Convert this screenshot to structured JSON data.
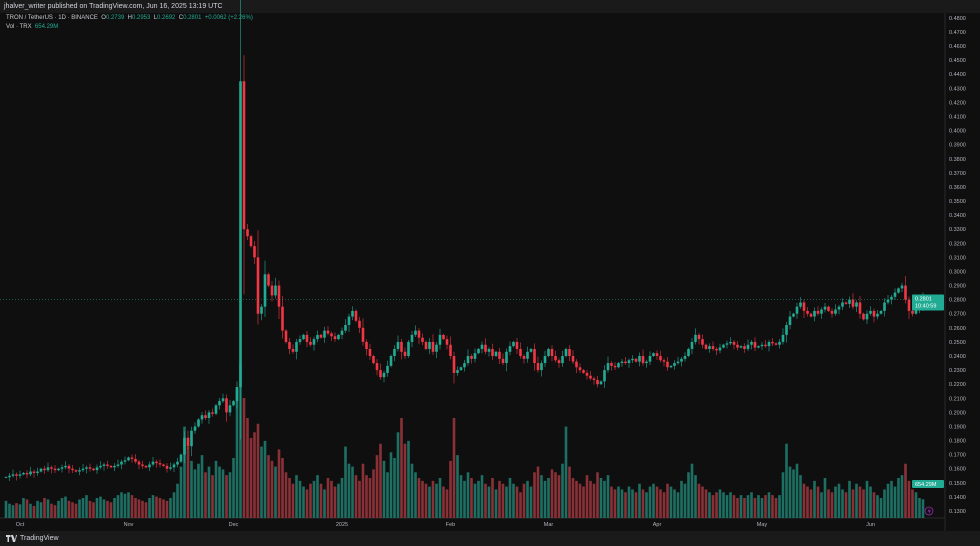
{
  "header": {
    "publisher": "jhalver_writer published on TradingView.com, Jun 16, 2025 13:19 UTC"
  },
  "legend": {
    "symbol": "TRON / TetherUS · 1D · BINANCE",
    "o_label": "O",
    "o": "0.2739",
    "h_label": "H",
    "h": "0.2953",
    "l_label": "L",
    "l": "0.2692",
    "c_label": "C",
    "c": "0.2801",
    "change": "+0.0062 (+2.26%)",
    "vol_label": "Vol · TRX",
    "vol": "654.29M"
  },
  "price_label": {
    "price": "0.2801",
    "countdown": "10:40:59"
  },
  "vol_label": "654.29M",
  "footer": {
    "brand": "TradingView"
  },
  "colors": {
    "up": "#22ab94",
    "down": "#f23645",
    "up_vol": "#1d6f63",
    "down_vol": "#8a3138",
    "bg": "#0f0f0f"
  },
  "chart_data": {
    "type": "candlestick",
    "symbol": "TRXUSDT",
    "interval": "1D",
    "start_date": "2024-09-27",
    "ylim": [
      0.125,
      0.485
    ],
    "y_ticks": [
      "0.4800",
      "0.4700",
      "0.4600",
      "0.4500",
      "0.4400",
      "0.4300",
      "0.4200",
      "0.4100",
      "0.4000",
      "0.3900",
      "0.3800",
      "0.3700",
      "0.3600",
      "0.3500",
      "0.3400",
      "0.3300",
      "0.3200",
      "0.3100",
      "0.3000",
      "0.2900",
      "0.2800",
      "0.2700",
      "0.2600",
      "0.2500",
      "0.2400",
      "0.2300",
      "0.2200",
      "0.2100",
      "0.2000",
      "0.1900",
      "0.1800",
      "0.1700",
      "0.1600",
      "0.1500",
      "0.1400",
      "0.1300"
    ],
    "x_ticks": [
      {
        "label": "Oct",
        "date": "2024-10-01"
      },
      {
        "label": "Nov",
        "date": "2024-11-01"
      },
      {
        "label": "Dec",
        "date": "2024-12-01"
      },
      {
        "label": "2025",
        "date": "2025-01-01"
      },
      {
        "label": "Feb",
        "date": "2025-02-01"
      },
      {
        "label": "Mar",
        "date": "2025-03-01"
      },
      {
        "label": "Apr",
        "date": "2025-04-01"
      },
      {
        "label": "May",
        "date": "2025-05-01"
      },
      {
        "label": "Jun",
        "date": "2025-06-01"
      }
    ],
    "first_open": 0.154,
    "close": [
      0.154,
      0.155,
      0.156,
      0.155,
      0.156,
      0.157,
      0.156,
      0.158,
      0.157,
      0.158,
      0.16,
      0.159,
      0.161,
      0.16,
      0.159,
      0.16,
      0.161,
      0.162,
      0.16,
      0.159,
      0.158,
      0.159,
      0.16,
      0.161,
      0.16,
      0.159,
      0.161,
      0.162,
      0.163,
      0.162,
      0.161,
      0.162,
      0.163,
      0.165,
      0.166,
      0.168,
      0.167,
      0.165,
      0.163,
      0.162,
      0.161,
      0.163,
      0.165,
      0.164,
      0.163,
      0.162,
      0.16,
      0.161,
      0.163,
      0.165,
      0.17,
      0.182,
      0.176,
      0.187,
      0.19,
      0.195,
      0.198,
      0.196,
      0.2,
      0.199,
      0.205,
      0.208,
      0.21,
      0.2,
      0.205,
      0.208,
      0.218,
      0.435,
      0.33,
      0.325,
      0.318,
      0.31,
      0.27,
      0.275,
      0.298,
      0.29,
      0.283,
      0.29,
      0.275,
      0.258,
      0.25,
      0.245,
      0.243,
      0.25,
      0.252,
      0.255,
      0.25,
      0.248,
      0.252,
      0.255,
      0.253,
      0.258,
      0.256,
      0.254,
      0.252,
      0.255,
      0.258,
      0.262,
      0.268,
      0.272,
      0.265,
      0.26,
      0.25,
      0.245,
      0.24,
      0.235,
      0.23,
      0.225,
      0.228,
      0.233,
      0.24,
      0.245,
      0.25,
      0.243,
      0.24,
      0.25,
      0.255,
      0.258,
      0.253,
      0.25,
      0.245,
      0.25,
      0.243,
      0.248,
      0.255,
      0.252,
      0.248,
      0.24,
      0.228,
      0.23,
      0.232,
      0.235,
      0.24,
      0.238,
      0.242,
      0.245,
      0.248,
      0.243,
      0.245,
      0.24,
      0.243,
      0.238,
      0.235,
      0.243,
      0.247,
      0.25,
      0.245,
      0.24,
      0.238,
      0.243,
      0.245,
      0.235,
      0.23,
      0.235,
      0.24,
      0.245,
      0.24,
      0.237,
      0.235,
      0.24,
      0.245,
      0.24,
      0.236,
      0.232,
      0.23,
      0.228,
      0.226,
      0.224,
      0.223,
      0.22,
      0.222,
      0.23,
      0.235,
      0.233,
      0.232,
      0.235,
      0.236,
      0.235,
      0.237,
      0.238,
      0.236,
      0.24,
      0.235,
      0.236,
      0.24,
      0.242,
      0.24,
      0.237,
      0.236,
      0.232,
      0.233,
      0.235,
      0.236,
      0.238,
      0.24,
      0.245,
      0.25,
      0.255,
      0.252,
      0.248,
      0.245,
      0.247,
      0.245,
      0.244,
      0.246,
      0.248,
      0.249,
      0.25,
      0.248,
      0.246,
      0.247,
      0.245,
      0.248,
      0.25,
      0.246,
      0.247,
      0.248,
      0.247,
      0.25,
      0.249,
      0.248,
      0.25,
      0.255,
      0.262,
      0.268,
      0.27,
      0.275,
      0.278,
      0.272,
      0.27,
      0.268,
      0.272,
      0.27,
      0.273,
      0.275,
      0.272,
      0.27,
      0.273,
      0.275,
      0.278,
      0.277,
      0.28,
      0.275,
      0.278,
      0.27,
      0.266,
      0.27,
      0.272,
      0.268,
      0.27,
      0.272,
      0.278,
      0.28,
      0.282,
      0.285,
      0.288,
      0.29,
      0.28,
      0.272,
      0.27,
      0.273,
      0.274,
      0.2801
    ],
    "volume_millions": [
      600,
      500,
      450,
      520,
      480,
      700,
      650,
      500,
      420,
      600,
      550,
      700,
      650,
      500,
      450,
      600,
      700,
      750,
      600,
      550,
      500,
      650,
      700,
      800,
      600,
      550,
      700,
      750,
      650,
      600,
      550,
      700,
      800,
      900,
      850,
      900,
      800,
      700,
      650,
      600,
      550,
      700,
      800,
      750,
      700,
      650,
      600,
      700,
      900,
      1200,
      1800,
      3200,
      2500,
      2000,
      1700,
      1900,
      2200,
      1600,
      1800,
      1500,
      2000,
      1800,
      1700,
      1500,
      1600,
      2100,
      4500,
      5400,
      4200,
      3500,
      2800,
      3000,
      3300,
      2500,
      2700,
      2200,
      2000,
      1800,
      2400,
      2100,
      1600,
      1400,
      1200,
      1500,
      1300,
      1100,
      1000,
      1200,
      1300,
      1500,
      1200,
      1000,
      1400,
      1300,
      1100,
      1200,
      1400,
      2500,
      1900,
      1800,
      1500,
      1300,
      1900,
      1500,
      1400,
      1700,
      2200,
      2600,
      2000,
      1600,
      2300,
      2100,
      3000,
      3500,
      2600,
      2700,
      1900,
      1600,
      1400,
      1300,
      1200,
      1100,
      1300,
      1200,
      1400,
      1100,
      1000,
      2000,
      3500,
      2200,
      1500,
      1300,
      1600,
      1400,
      1200,
      1300,
      1500,
      1200,
      1100,
      1400,
      1000,
      1300,
      1200,
      1100,
      1400,
      1200,
      1100,
      900,
      1200,
      1300,
      1100,
      1600,
      1800,
      1500,
      1300,
      1400,
      1700,
      1600,
      1500,
      1900,
      3200,
      1800,
      1400,
      1300,
      1200,
      1100,
      1500,
      1300,
      1200,
      1600,
      1400,
      1300,
      1500,
      1100,
      1000,
      1100,
      1000,
      900,
      1100,
      1000,
      900,
      1200,
      1000,
      900,
      1100,
      1200,
      1100,
      1000,
      900,
      1200,
      1100,
      1000,
      900,
      1300,
      1200,
      1600,
      1900,
      1500,
      1200,
      1100,
      1000,
      900,
      800,
      900,
      1000,
      900,
      800,
      900,
      800,
      700,
      800,
      700,
      800,
      900,
      700,
      800,
      700,
      800,
      900,
      800,
      700,
      800,
      1600,
      2600,
      1800,
      1700,
      1900,
      1500,
      1200,
      1100,
      1000,
      1300,
      1100,
      900,
      1400,
      1000,
      900,
      1100,
      1200,
      1000,
      900,
      1300,
      1000,
      1200,
      1100,
      1000,
      1300,
      1100,
      900,
      800,
      700,
      1000,
      1200,
      1300,
      1100,
      1400,
      1500,
      1900,
      1300,
      1000,
      900,
      700,
      654.29
    ]
  }
}
